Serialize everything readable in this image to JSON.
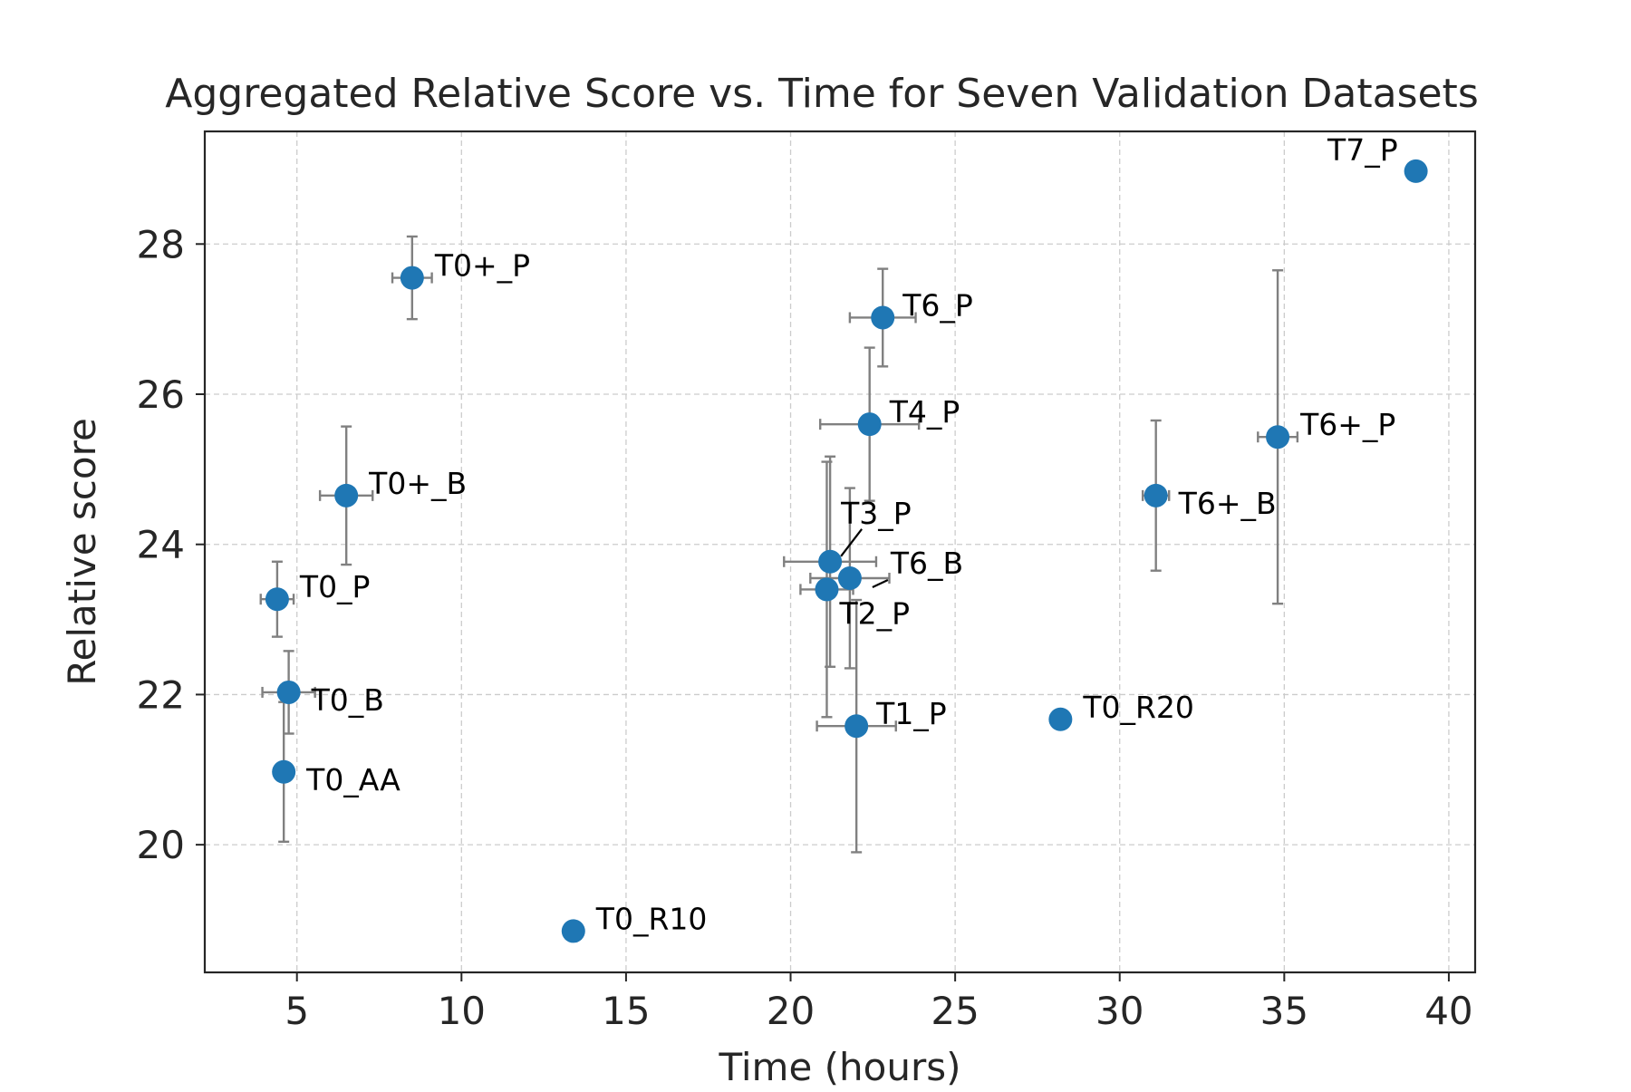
{
  "chart_data": {
    "type": "scatter",
    "title": "Aggregated Relative Score vs. Time for Seven Validation Datasets",
    "xlabel": "Time (hours)",
    "ylabel": "Relative score",
    "xlim": [
      2.2,
      40.8
    ],
    "ylim": [
      18.3,
      29.5
    ],
    "xticks": [
      5,
      10,
      15,
      20,
      25,
      30,
      35,
      40
    ],
    "yticks": [
      20,
      22,
      24,
      26,
      28
    ],
    "grid": true,
    "marker_color": "#1f77b4",
    "errorbar_color": "#808080",
    "points": [
      {
        "label": "T0+_P",
        "x": 8.5,
        "y": 27.55,
        "xerr": 0.6,
        "yerr": 0.55
      },
      {
        "label": "T0+_B",
        "x": 6.5,
        "y": 24.65,
        "xerr": 0.8,
        "yerr": 0.92
      },
      {
        "label": "T0_P",
        "x": 4.4,
        "y": 23.27,
        "xerr": 0.5,
        "yerr": 0.5
      },
      {
        "label": "T0_B",
        "x": 4.75,
        "y": 22.03,
        "xerr": 0.8,
        "yerr": 0.55
      },
      {
        "label": "T0_AA",
        "x": 4.6,
        "y": 20.97,
        "xerr": 0,
        "yerr": 0.93
      },
      {
        "label": "T0_R10",
        "x": 13.4,
        "y": 18.85,
        "xerr": 0,
        "yerr": 0
      },
      {
        "label": "T6_P",
        "x": 22.8,
        "y": 27.02,
        "xerr": 1.0,
        "yerr": 0.65
      },
      {
        "label": "T4_P",
        "x": 22.4,
        "y": 25.6,
        "xerr": 1.5,
        "yerr": 1.02
      },
      {
        "label": "T3_P",
        "x": 21.2,
        "y": 23.77,
        "xerr": 1.4,
        "yerr": 1.4
      },
      {
        "label": "T6_B",
        "x": 21.8,
        "y": 23.55,
        "xerr": 1.2,
        "yerr": 1.2
      },
      {
        "label": "T2_P",
        "x": 21.1,
        "y": 23.4,
        "xerr": 0.8,
        "yerr": 1.7
      },
      {
        "label": "T1_P",
        "x": 22.0,
        "y": 21.58,
        "xerr": 1.2,
        "yerr": 1.68
      },
      {
        "label": "T0_R20",
        "x": 28.2,
        "y": 21.67,
        "xerr": 0,
        "yerr": 0
      },
      {
        "label": "T6+_B",
        "x": 31.1,
        "y": 24.65,
        "xerr": 0.4,
        "yerr": 1.0
      },
      {
        "label": "T6+_P",
        "x": 34.8,
        "y": 25.43,
        "xerr": 0.6,
        "yerr": 2.22
      },
      {
        "label": "T7_P",
        "x": 39.0,
        "y": 28.97,
        "xerr": 0,
        "yerr": 0
      }
    ]
  }
}
